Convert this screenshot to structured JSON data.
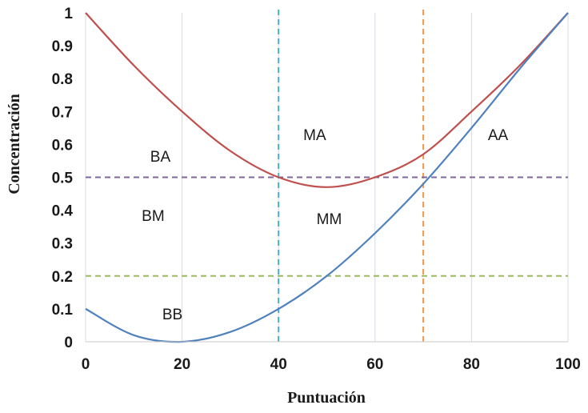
{
  "chart_data": {
    "type": "line",
    "xlabel": "Puntuación",
    "ylabel": "Concentración",
    "xlim": [
      0,
      100
    ],
    "ylim": [
      0,
      1
    ],
    "grid": "vertical",
    "x_ticks": [
      "0",
      "20",
      "40",
      "60",
      "80",
      "100"
    ],
    "y_ticks": [
      "0",
      "0.1",
      "0.2",
      "0.3",
      "0.4",
      "0.5",
      "0.6",
      "0.7",
      "0.8",
      "0.9",
      "1"
    ],
    "series": [
      {
        "color": "#c0504d",
        "x": [
          0,
          10,
          20,
          30,
          40,
          50,
          60,
          70,
          80,
          90,
          100
        ],
        "y": [
          1.0,
          0.84,
          0.7,
          0.58,
          0.5,
          0.47,
          0.5,
          0.57,
          0.7,
          0.84,
          1.0
        ]
      },
      {
        "color": "#4f81bd",
        "x": [
          0,
          10,
          20,
          30,
          40,
          50,
          60,
          70,
          80,
          90,
          100
        ],
        "y": [
          0.1,
          0.02,
          0.0,
          0.03,
          0.1,
          0.2,
          0.33,
          0.48,
          0.65,
          0.83,
          1.0
        ]
      }
    ],
    "reference_lines": [
      {
        "axis": "x",
        "value": 40,
        "color": "#4bacc6",
        "dash": true
      },
      {
        "axis": "x",
        "value": 70,
        "color": "#f79646",
        "dash": true
      },
      {
        "axis": "y",
        "value": 0.5,
        "color": "#8064a2",
        "dash": true
      },
      {
        "axis": "y",
        "value": 0.2,
        "color": "#9bbb59",
        "dash": true
      }
    ],
    "annotations": [
      {
        "text": "BA",
        "x": 15.5,
        "y": 0.565
      },
      {
        "text": "BM",
        "x": 14,
        "y": 0.385
      },
      {
        "text": "BB",
        "x": 18,
        "y": 0.085
      },
      {
        "text": "MA",
        "x": 47.5,
        "y": 0.63
      },
      {
        "text": "MM",
        "x": 50.5,
        "y": 0.375
      },
      {
        "text": "AA",
        "x": 85.5,
        "y": 0.63
      }
    ]
  }
}
